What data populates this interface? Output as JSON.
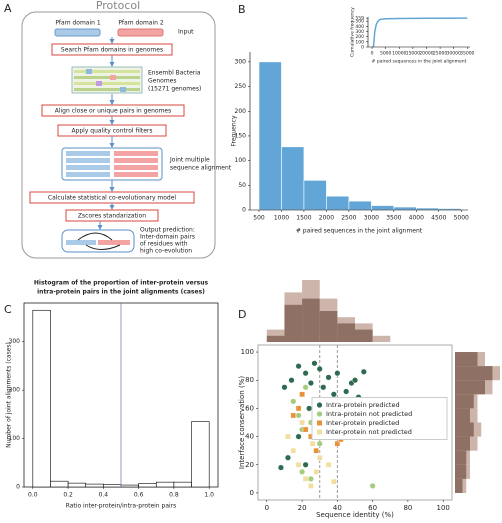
{
  "protocol": {
    "panel": "A",
    "title": "Protocol",
    "domains": [
      "Pfam domain 1",
      "Pfam domain 2"
    ],
    "input": "Input",
    "steps": [
      "Search Pfam domains in genomes",
      "Align close or unique pairs in genomes",
      "Apply quality control filters",
      "Calculate statistical co-evolutionary model",
      "Zscores standarization"
    ],
    "genomes": [
      "Ensembl Bacteria",
      "Genomes",
      "(15271 genomes)"
    ],
    "alignment": [
      "Joint multiple",
      "sequence alignment"
    ],
    "output": [
      "Output prediction:",
      "Inter-domain pairs",
      "of residues with",
      "high co-evolution"
    ]
  },
  "chart_data": [
    {
      "panel": "B",
      "type": "histogram",
      "bins": [
        500,
        1000,
        1500,
        2000,
        2500,
        3000,
        3500,
        4000,
        4500,
        5000
      ],
      "values": [
        300,
        128,
        60,
        28,
        18,
        9,
        6,
        4,
        3
      ],
      "color": "#62a6d8",
      "edgecolor": "#ffffff",
      "xlabel": "# paired sequences in the joint alignment",
      "ylabel": "Frequency",
      "xlim": [
        300,
        5150
      ],
      "ylim": [
        0,
        320
      ],
      "xticks": [
        500,
        1000,
        1500,
        2000,
        2500,
        3000,
        3500,
        4000,
        4500,
        5000
      ],
      "yticks": [
        0,
        50,
        100,
        150,
        200,
        250,
        300
      ]
    },
    {
      "type": "line",
      "x": [
        500,
        1000,
        1500,
        2000,
        2500,
        3000,
        5000,
        10000,
        20000,
        35000
      ],
      "values": [
        0,
        300,
        428,
        488,
        516,
        534,
        545,
        552,
        556,
        559
      ],
      "color": "#62a6d8",
      "xlabel": "# paired sequences in the joint alignment",
      "ylabel": "Cumulative frequency",
      "xlim": [
        -1500,
        36000
      ],
      "ylim": [
        0,
        580
      ],
      "xticks": [
        0,
        5000,
        10000,
        15000,
        20000,
        25000,
        30000,
        35000
      ],
      "yticks": [
        0,
        100,
        200,
        300,
        400,
        500,
        559
      ]
    },
    {
      "panel": "C",
      "type": "histogram",
      "title": [
        "Histogram of the proportion of inter-protein versus",
        "intra-protein pairs in the joint alignments (cases)"
      ],
      "bins": [
        0,
        0.1,
        0.2,
        0.3,
        0.4,
        0.5,
        0.6,
        0.7,
        0.8,
        0.9,
        1.0
      ],
      "values": [
        365,
        12,
        8,
        6,
        5,
        4,
        7,
        10,
        10,
        135
      ],
      "color": "#ffffff",
      "edgecolor": "#000000",
      "vline": 0.5,
      "vline_color": "#7b7bbf",
      "xlabel": "Ratio inter-protein/intra-protein pairs",
      "ylabel": "Number of joint alignments (cases)",
      "xlim": [
        -0.05,
        1.05
      ],
      "ylim": [
        0,
        380
      ],
      "xticks": [
        {
          "value": 0,
          "label": "0.0"
        },
        0.2,
        0.4,
        0.6,
        0.8,
        {
          "value": 1,
          "label": "1.0"
        }
      ],
      "yticks": [
        0,
        100,
        200,
        300
      ]
    },
    {
      "panel": "D",
      "type": "scatter",
      "xlabel": "Sequence identity (%)",
      "ylabel": "Interface conservation (%)",
      "xlim": [
        -5,
        105
      ],
      "ylim": [
        -5,
        105
      ],
      "xticks": [
        0,
        20,
        40,
        60,
        80,
        100
      ],
      "yticks": [
        0,
        20,
        40,
        60,
        80,
        100
      ],
      "vlines": [
        30,
        40
      ],
      "legend": "center right",
      "series": [
        {
          "name": "Intra-protein predicted",
          "color": "#2d6a4f",
          "marker": "o",
          "x": [
            10,
            14,
            18,
            20,
            22,
            24,
            25,
            27,
            30,
            32,
            35,
            38,
            40,
            42,
            45,
            48,
            50,
            52,
            55,
            18,
            22,
            28,
            33,
            12,
            8
          ],
          "values": [
            75,
            80,
            90,
            70,
            85,
            60,
            78,
            92,
            88,
            75,
            82,
            70,
            85,
            65,
            72,
            78,
            80,
            68,
            86,
            40,
            20,
            30,
            55,
            25,
            18
          ]
        },
        {
          "name": "Intra-protein not predicted",
          "color": "#a3cc7f",
          "marker": "o",
          "x": [
            15,
            18,
            20,
            22,
            25,
            28,
            30,
            35,
            40,
            45,
            20,
            25,
            30,
            60,
            50
          ],
          "values": [
            65,
            55,
            45,
            75,
            50,
            62,
            35,
            40,
            60,
            55,
            15,
            10,
            25,
            5,
            45
          ]
        },
        {
          "name": "Inter-protein predicted",
          "color": "#e8923a",
          "marker": "s",
          "x": [
            15,
            18,
            22,
            25,
            28,
            30,
            35,
            40,
            20,
            42
          ],
          "values": [
            55,
            60,
            45,
            40,
            30,
            65,
            50,
            35,
            70,
            38
          ]
        },
        {
          "name": "Inter-protein not predicted",
          "color": "#f2dfa0",
          "marker": "s",
          "x": [
            12,
            15,
            18,
            22,
            25,
            28,
            30,
            32,
            35,
            20,
            26,
            38
          ],
          "values": [
            40,
            30,
            20,
            10,
            5,
            15,
            25,
            45,
            20,
            50,
            35,
            8
          ]
        }
      ],
      "top_hist": {
        "bins": [
          0,
          10,
          20,
          30,
          40,
          50,
          60,
          70
        ],
        "series": [
          {
            "color": "#cdb5ab",
            "values": [
              2,
              8,
              10,
              7,
              4,
              3,
              1
            ]
          },
          {
            "color": "#8f7065",
            "values": [
              1,
              6,
              7,
              5,
              3,
              2,
              0
            ]
          }
        ]
      },
      "right_hist": {
        "bins": [
          0,
          10,
          20,
          30,
          40,
          50,
          60,
          70,
          80,
          90,
          100
        ],
        "series": [
          {
            "color": "#cdb5ab",
            "values": [
              3,
              4,
              4,
              6,
              7,
              6,
              6,
              10,
              12,
              8
            ]
          },
          {
            "color": "#8f7065",
            "values": [
              2,
              3,
              3,
              4,
              5,
              4,
              5,
              8,
              10,
              6
            ]
          }
        ]
      }
    }
  ]
}
